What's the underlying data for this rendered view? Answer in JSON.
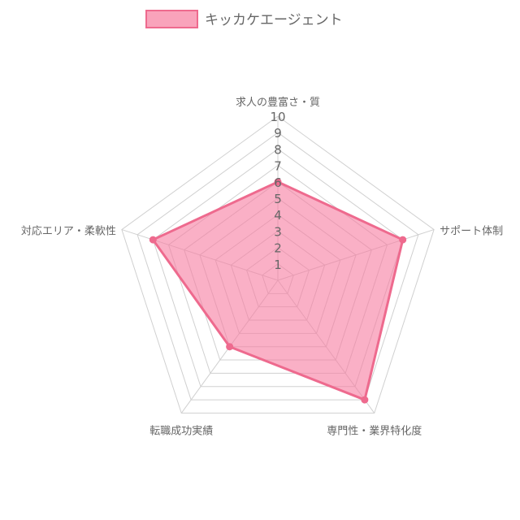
{
  "chart_data": {
    "type": "radar",
    "categories": [
      "求人の豊富さ・質",
      "サポート体制",
      "専門性・業界特化度",
      "転職成功実績",
      "対応エリア・柔軟性"
    ],
    "series": [
      {
        "name": "キッカケエージェント",
        "values": [
          6,
          8,
          9,
          5,
          8
        ],
        "fill": "#f77ca0",
        "stroke": "#ee6a8e",
        "legend_fill": "#f9a3bb"
      }
    ],
    "rlim": [
      0,
      10
    ],
    "ticks": [
      "1",
      "2",
      "3",
      "4",
      "5",
      "6",
      "7",
      "8",
      "9",
      "10"
    ],
    "grid": true,
    "legend_position": "top",
    "title": "",
    "colors": {
      "grid": "#d0d0d0",
      "text": "#666666"
    }
  }
}
